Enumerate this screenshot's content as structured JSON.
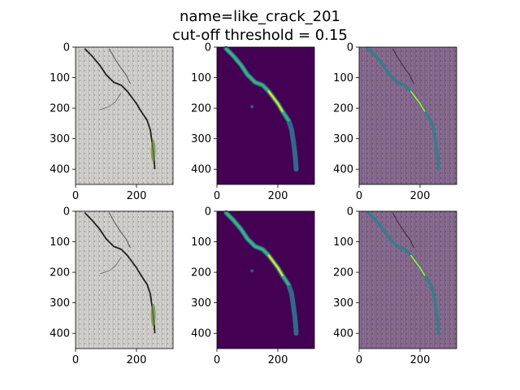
{
  "figure": {
    "title_line1": "name=like_crack_201",
    "title_line2": "cut-off threshold = 0.15",
    "colors": {
      "concrete": "#d6d4d0",
      "mask_bg": "#440154",
      "overlay_tint": "#7a5a86",
      "crack_dark": "#1e1e1e",
      "crack_mid": "#2a7f8a",
      "crack_hot": "#dde318"
    }
  },
  "chart_data": [
    {
      "type": "heatmap",
      "panel": "original",
      "row": 1,
      "col": 1,
      "xlim": [
        0,
        320
      ],
      "ylim": [
        450,
        0
      ],
      "xticks": [
        0,
        200
      ],
      "yticks": [
        0,
        100,
        200,
        300,
        400
      ],
      "xtick_labels": [
        "0",
        "200"
      ],
      "ytick_labels": [
        "0",
        "100",
        "200",
        "300",
        "400"
      ]
    },
    {
      "type": "heatmap",
      "panel": "prediction",
      "row": 1,
      "col": 2,
      "xlim": [
        0,
        320
      ],
      "ylim": [
        450,
        0
      ],
      "xticks": [
        0,
        200
      ],
      "yticks": [
        0,
        100,
        200,
        300,
        400
      ],
      "xtick_labels": [
        "0",
        "200"
      ],
      "ytick_labels": [
        "0",
        "100",
        "200",
        "300",
        "400"
      ]
    },
    {
      "type": "heatmap",
      "panel": "overlay",
      "row": 1,
      "col": 3,
      "xlim": [
        0,
        320
      ],
      "ylim": [
        450,
        0
      ],
      "xticks": [
        0,
        200
      ],
      "yticks": [
        0,
        100,
        200,
        300,
        400
      ],
      "xtick_labels": [
        "0",
        "200"
      ],
      "ytick_labels": [
        "0",
        "100",
        "200",
        "300",
        "400"
      ]
    },
    {
      "type": "heatmap",
      "panel": "original",
      "row": 2,
      "col": 1,
      "xlim": [
        0,
        320
      ],
      "ylim": [
        450,
        0
      ],
      "xticks": [
        0,
        200
      ],
      "yticks": [
        0,
        100,
        200,
        300,
        400
      ],
      "xtick_labels": [
        "0",
        "200"
      ],
      "ytick_labels": [
        "0",
        "100",
        "200",
        "300",
        "400"
      ]
    },
    {
      "type": "heatmap",
      "panel": "prediction",
      "row": 2,
      "col": 2,
      "xlim": [
        0,
        320
      ],
      "ylim": [
        450,
        0
      ],
      "xticks": [
        0,
        200
      ],
      "yticks": [
        0,
        100,
        200,
        300,
        400
      ],
      "xtick_labels": [
        "0",
        "200"
      ],
      "ytick_labels": [
        "0",
        "100",
        "200",
        "300",
        "400"
      ]
    },
    {
      "type": "heatmap",
      "panel": "overlay",
      "row": 2,
      "col": 3,
      "xlim": [
        0,
        320
      ],
      "ylim": [
        450,
        0
      ],
      "xticks": [
        0,
        200
      ],
      "yticks": [
        0,
        100,
        200,
        300,
        400
      ],
      "xtick_labels": [
        "0",
        "200"
      ],
      "ytick_labels": [
        "0",
        "100",
        "200",
        "300",
        "400"
      ]
    }
  ]
}
